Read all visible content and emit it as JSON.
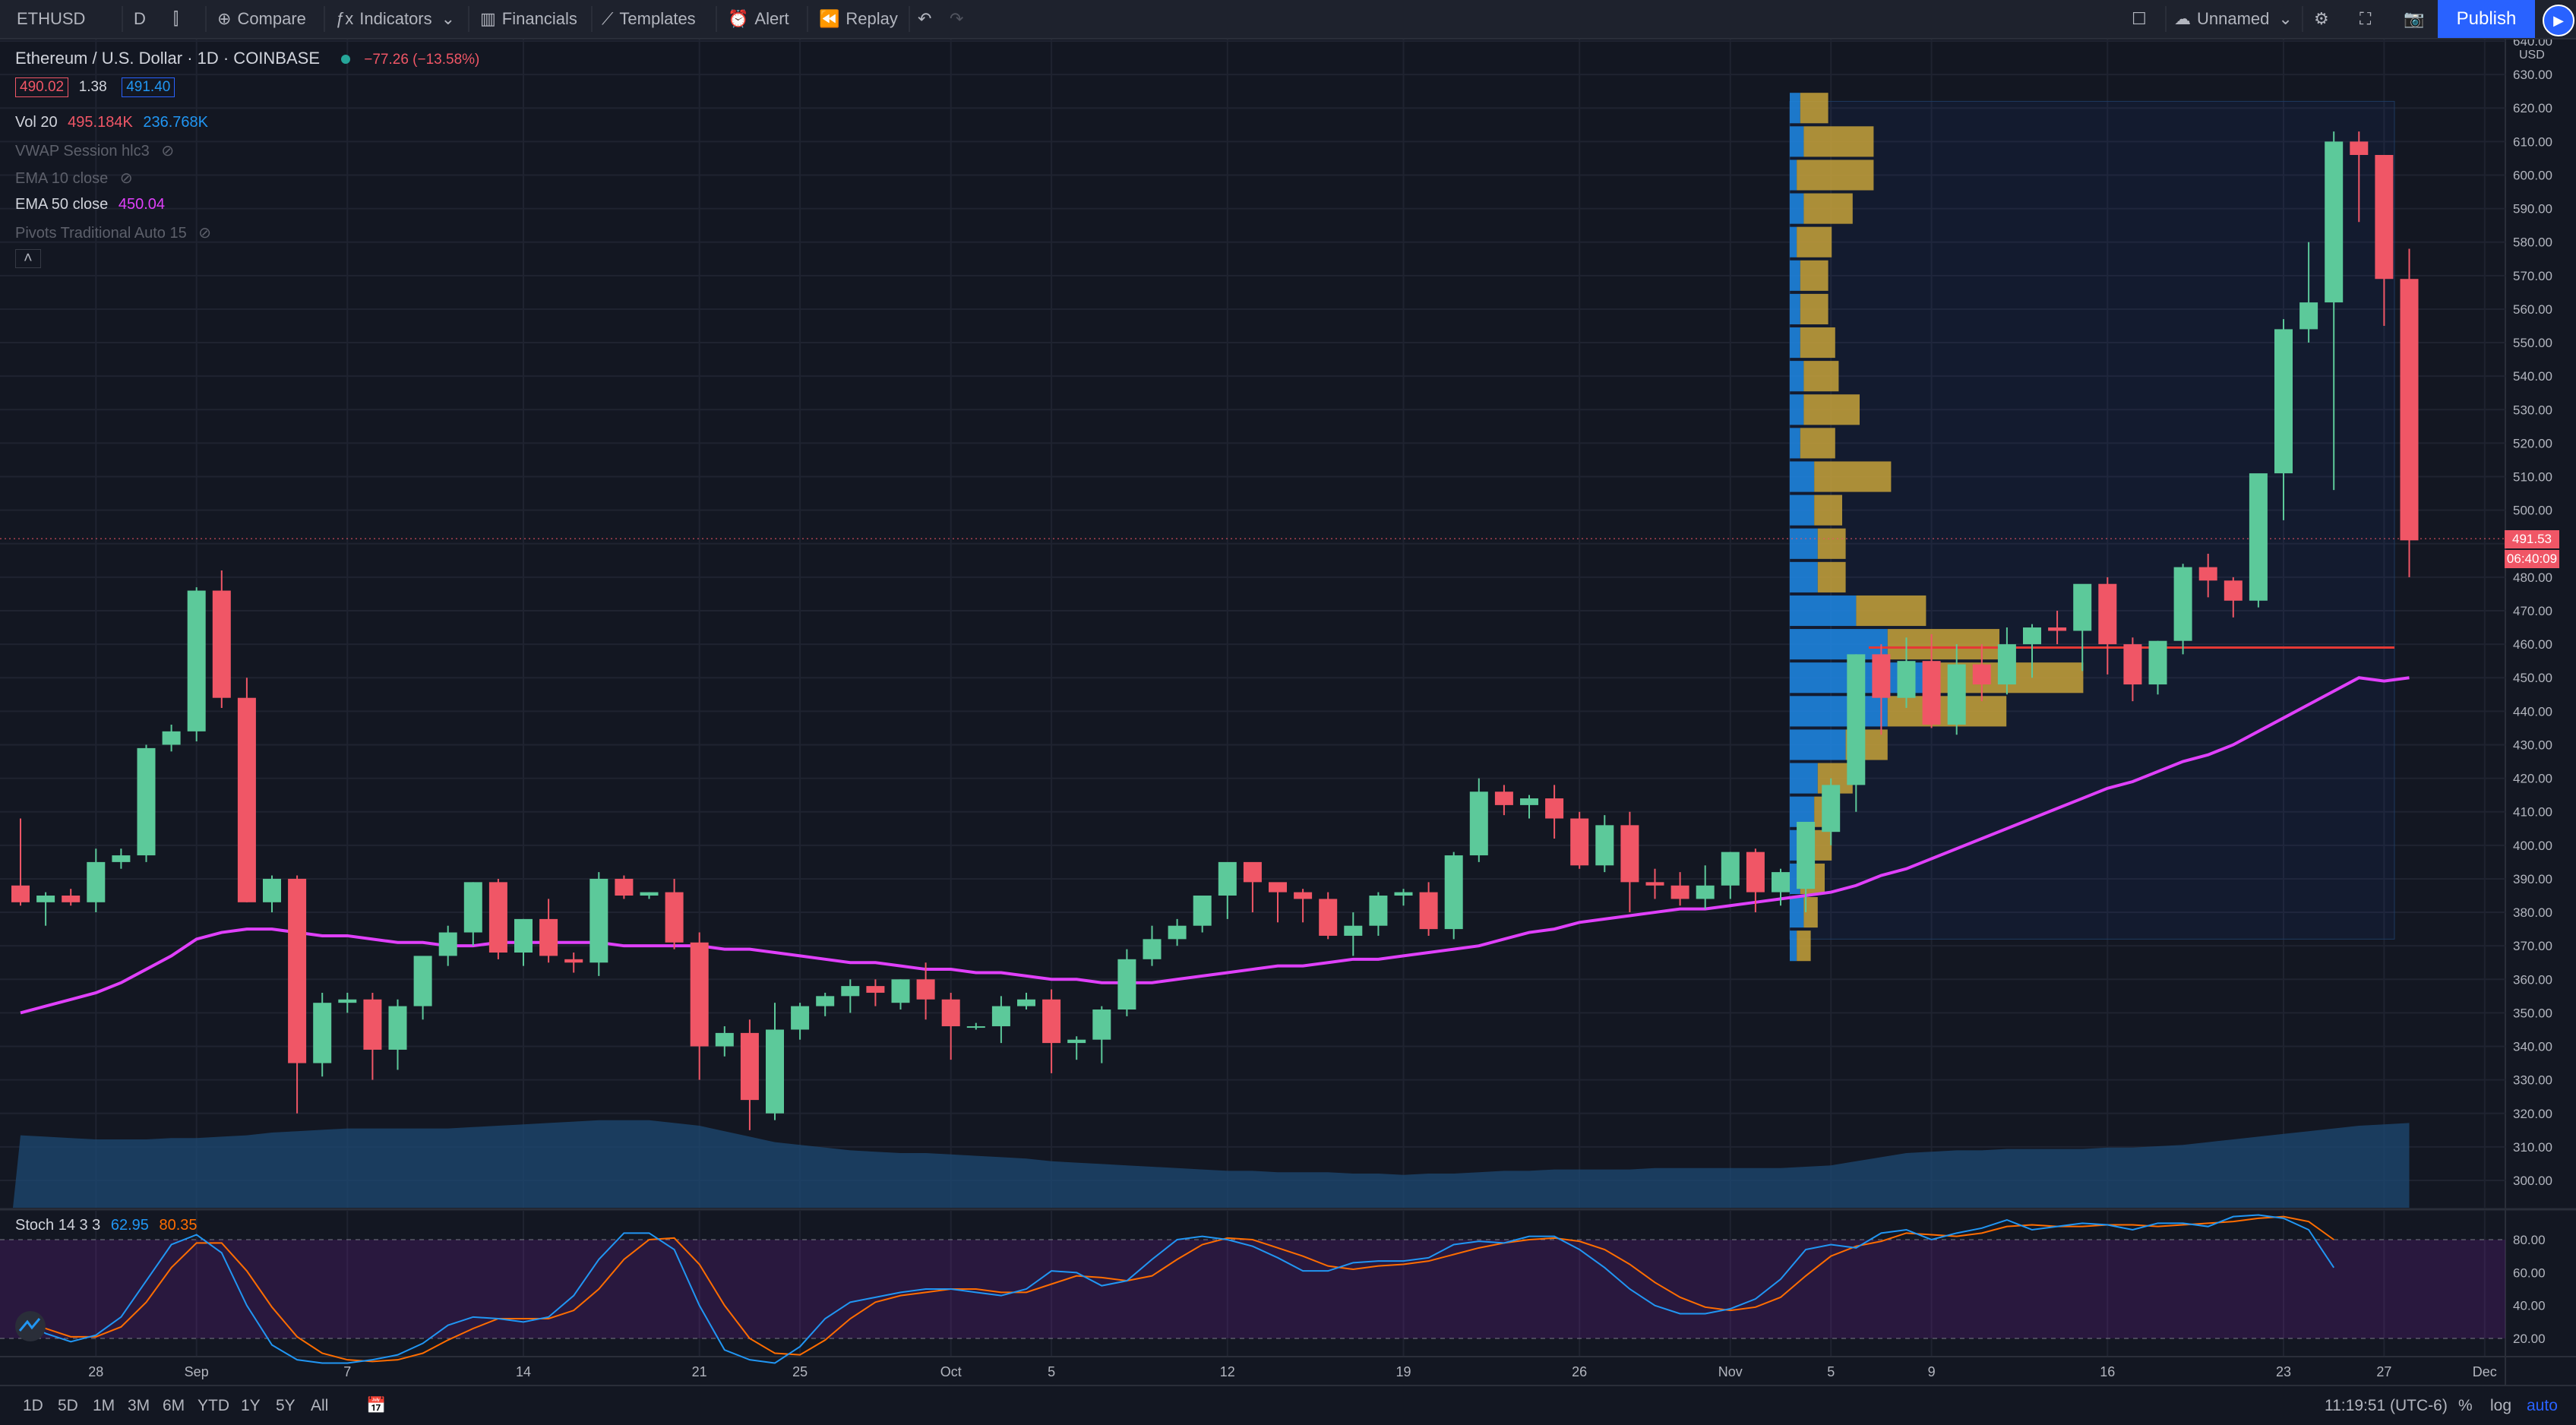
{
  "toolbar": {
    "symbol": "ETHUSD",
    "interval": "D",
    "compare": "Compare",
    "indicators": "Indicators",
    "financials": "Financials",
    "templates": "Templates",
    "alert": "Alert",
    "replay": "Replay",
    "layout_name": "Unnamed",
    "publish": "Publish"
  },
  "legend": {
    "title": "Ethereum / U.S. Dollar · 1D · COINBASE",
    "change": "−77.26 (−13.58%)",
    "bid": "490.02",
    "spread": "1.38",
    "ask": "491.40",
    "vol_label": "Vol 20",
    "vol_val1": "495.184K",
    "vol_val2": "236.768K",
    "vwap": "VWAP Session hlc3",
    "ema10": "EMA 10 close",
    "ema50": "EMA 50 close",
    "ema50_val": "450.04",
    "pivots": "Pivots Traditional Auto 15",
    "stoch_label": "Stoch 14 3 3",
    "stoch_k": "62.95",
    "stoch_d": "80.35"
  },
  "price_labels": {
    "last": "491.53",
    "countdown": "06:40:09",
    "currency": "USD"
  },
  "bottom": {
    "ranges": [
      "1D",
      "5D",
      "1M",
      "3M",
      "6M",
      "YTD",
      "1Y",
      "5Y",
      "All"
    ],
    "time": "11:19:51 (UTC-6)",
    "pct": "%",
    "log": "log",
    "auto": "auto"
  },
  "colors": {
    "up": "#26a69a",
    "up_body": "#5cc99a",
    "down": "#f05666",
    "ema": "#e040fb",
    "stoch_k": "#2196f3",
    "stoch_d": "#ff6d00",
    "volprofile_up": "#1e88e5",
    "volprofile_down": "#c7a23a"
  },
  "chart_data": {
    "type": "candlestick",
    "ylim": [
      295,
      640
    ],
    "price_ticks": [
      300,
      310,
      320,
      330,
      340,
      350,
      360,
      370,
      380,
      390,
      400,
      410,
      420,
      430,
      440,
      450,
      460,
      470,
      480,
      490,
      500,
      510,
      520,
      530,
      540,
      550,
      560,
      570,
      580,
      590,
      600,
      610,
      620,
      630,
      640
    ],
    "x_labels": [
      {
        "label": "28",
        "i": 3
      },
      {
        "label": "Sep",
        "i": 7
      },
      {
        "label": "7",
        "i": 13
      },
      {
        "label": "14",
        "i": 20
      },
      {
        "label": "21",
        "i": 27
      },
      {
        "label": "25",
        "i": 31
      },
      {
        "label": "Oct",
        "i": 37
      },
      {
        "label": "5",
        "i": 41
      },
      {
        "label": "12",
        "i": 48
      },
      {
        "label": "19",
        "i": 55
      },
      {
        "label": "26",
        "i": 62
      },
      {
        "label": "Nov",
        "i": 68
      },
      {
        "label": "5",
        "i": 72
      },
      {
        "label": "9",
        "i": 76
      },
      {
        "label": "16",
        "i": 83
      },
      {
        "label": "23",
        "i": 90
      },
      {
        "label": "27",
        "i": 94
      },
      {
        "label": "Dec",
        "i": 98
      }
    ],
    "candles": [
      [
        388,
        408,
        382,
        383
      ],
      [
        383,
        386,
        376,
        385
      ],
      [
        385,
        387,
        382,
        383
      ],
      [
        383,
        399,
        380,
        395
      ],
      [
        395,
        399,
        393,
        397
      ],
      [
        397,
        430,
        395,
        429
      ],
      [
        430,
        436,
        428,
        434
      ],
      [
        434,
        477,
        431,
        476
      ],
      [
        476,
        482,
        441,
        444
      ],
      [
        444,
        450,
        383,
        383
      ],
      [
        383,
        391,
        380,
        390
      ],
      [
        390,
        391,
        320,
        335
      ],
      [
        335,
        356,
        331,
        353
      ],
      [
        353,
        356,
        350,
        354
      ],
      [
        354,
        356,
        330,
        339
      ],
      [
        339,
        354,
        333,
        352
      ],
      [
        352,
        365,
        348,
        367
      ],
      [
        367,
        376,
        364,
        374
      ],
      [
        374,
        389,
        370,
        389
      ],
      [
        389,
        390,
        366,
        368
      ],
      [
        368,
        378,
        364,
        378
      ],
      [
        378,
        384,
        365,
        367
      ],
      [
        366,
        368,
        362,
        365
      ],
      [
        365,
        392,
        361,
        390
      ],
      [
        390,
        391,
        384,
        385
      ],
      [
        385,
        386,
        384,
        386
      ],
      [
        386,
        390,
        369,
        371
      ],
      [
        371,
        374,
        330,
        340
      ],
      [
        340,
        346,
        337,
        344
      ],
      [
        344,
        348,
        315,
        324
      ],
      [
        320,
        353,
        318,
        345
      ],
      [
        345,
        353,
        342,
        352
      ],
      [
        352,
        356,
        349,
        355
      ],
      [
        355,
        360,
        350,
        358
      ],
      [
        358,
        360,
        352,
        356
      ],
      [
        353,
        360,
        351,
        360
      ],
      [
        360,
        365,
        348,
        354
      ],
      [
        354,
        356,
        336,
        346
      ],
      [
        346,
        347,
        345,
        346
      ],
      [
        346,
        355,
        341,
        352
      ],
      [
        352,
        356,
        351,
        354
      ],
      [
        354,
        357,
        332,
        341
      ],
      [
        341,
        343,
        336,
        342
      ],
      [
        342,
        352,
        335,
        351
      ],
      [
        351,
        369,
        349,
        366
      ],
      [
        366,
        376,
        364,
        372
      ],
      [
        372,
        378,
        370,
        376
      ],
      [
        376,
        384,
        374,
        385
      ],
      [
        385,
        394,
        378,
        395
      ],
      [
        395,
        392,
        380,
        389
      ],
      [
        389,
        388,
        377,
        386
      ],
      [
        386,
        387,
        377,
        384
      ],
      [
        384,
        386,
        372,
        373
      ],
      [
        373,
        380,
        367,
        376
      ],
      [
        376,
        386,
        373,
        385
      ],
      [
        385,
        387,
        382,
        386
      ],
      [
        386,
        389,
        373,
        375
      ],
      [
        375,
        398,
        372,
        397
      ],
      [
        397,
        420,
        395,
        416
      ],
      [
        416,
        418,
        409,
        412
      ],
      [
        412,
        415,
        408,
        414
      ],
      [
        414,
        418,
        402,
        408
      ],
      [
        408,
        410,
        393,
        394
      ],
      [
        394,
        409,
        392,
        406
      ],
      [
        406,
        410,
        380,
        389
      ],
      [
        389,
        393,
        384,
        388
      ],
      [
        388,
        392,
        382,
        384
      ],
      [
        384,
        394,
        381,
        388
      ],
      [
        388,
        398,
        384,
        398
      ],
      [
        398,
        399,
        380,
        386
      ],
      [
        386,
        393,
        382,
        392
      ],
      [
        387,
        407,
        380,
        407
      ],
      [
        404,
        420,
        400,
        418
      ],
      [
        418,
        457,
        410,
        457
      ],
      [
        457,
        460,
        433,
        444
      ],
      [
        444,
        462,
        441,
        455
      ],
      [
        455,
        463,
        435,
        436
      ],
      [
        436,
        460,
        433,
        454
      ],
      [
        454,
        460,
        443,
        448
      ],
      [
        448,
        465,
        445,
        460
      ],
      [
        460,
        466,
        450,
        465
      ],
      [
        465,
        470,
        460,
        464
      ],
      [
        464,
        476,
        452,
        478
      ],
      [
        478,
        480,
        451,
        460
      ],
      [
        460,
        462,
        443,
        448
      ],
      [
        448,
        461,
        445,
        461
      ],
      [
        461,
        484,
        457,
        483
      ],
      [
        483,
        487,
        474,
        479
      ],
      [
        479,
        480,
        468,
        473
      ],
      [
        473,
        510,
        471,
        511
      ],
      [
        511,
        557,
        497,
        554
      ],
      [
        554,
        580,
        550,
        562
      ],
      [
        562,
        613,
        506,
        610
      ],
      [
        610,
        613,
        586,
        606
      ],
      [
        606,
        605,
        555,
        569
      ],
      [
        569,
        578,
        480,
        491
      ]
    ],
    "ema50": [
      350,
      352,
      354,
      356,
      359,
      363,
      367,
      372,
      374,
      375,
      375,
      374,
      373,
      373,
      372,
      371,
      371,
      370,
      370,
      371,
      371,
      371,
      371,
      371,
      370,
      370,
      370,
      370,
      369,
      369,
      368,
      367,
      366,
      365,
      365,
      364,
      363,
      363,
      362,
      362,
      361,
      360,
      360,
      359,
      359,
      359,
      360,
      361,
      362,
      363,
      364,
      364,
      365,
      366,
      366,
      367,
      368,
      369,
      370,
      372,
      374,
      375,
      377,
      378,
      379,
      380,
      381,
      381,
      382,
      383,
      384,
      385,
      386,
      388,
      391,
      393,
      396,
      399,
      402,
      405,
      408,
      411,
      414,
      417,
      419,
      422,
      425,
      427,
      430,
      434,
      438,
      442,
      446,
      450,
      449,
      450
    ],
    "volume_levels": [
      0.53,
      0.52,
      0.51,
      0.5,
      0.5,
      0.5,
      0.51,
      0.51,
      0.52,
      0.53,
      0.55,
      0.56,
      0.57,
      0.58,
      0.58,
      0.58,
      0.58,
      0.58,
      0.59,
      0.6,
      0.61,
      0.62,
      0.63,
      0.64,
      0.64,
      0.64,
      0.62,
      0.6,
      0.56,
      0.52,
      0.48,
      0.46,
      0.44,
      0.42,
      0.41,
      0.4,
      0.4,
      0.39,
      0.38,
      0.37,
      0.36,
      0.34,
      0.33,
      0.32,
      0.31,
      0.3,
      0.29,
      0.28,
      0.27,
      0.27,
      0.26,
      0.26,
      0.26,
      0.25,
      0.25,
      0.24,
      0.25,
      0.25,
      0.26,
      0.27,
      0.27,
      0.28,
      0.28,
      0.28,
      0.28,
      0.29,
      0.29,
      0.29,
      0.29,
      0.29,
      0.29,
      0.3,
      0.31,
      0.34,
      0.37,
      0.4,
      0.41,
      0.42,
      0.42,
      0.43,
      0.43,
      0.43,
      0.43,
      0.44,
      0.44,
      0.45,
      0.46,
      0.48,
      0.5,
      0.52,
      0.54,
      0.56,
      0.58,
      0.6,
      0.61,
      0.62
    ],
    "volume_profile": [
      {
        "price": 620,
        "up": 3,
        "down": 8
      },
      {
        "price": 610,
        "up": 4,
        "down": 20
      },
      {
        "price": 600,
        "up": 2,
        "down": 22
      },
      {
        "price": 590,
        "up": 4,
        "down": 14
      },
      {
        "price": 580,
        "up": 2,
        "down": 10
      },
      {
        "price": 570,
        "up": 3,
        "down": 8
      },
      {
        "price": 560,
        "up": 3,
        "down": 8
      },
      {
        "price": 550,
        "up": 3,
        "down": 10
      },
      {
        "price": 540,
        "up": 4,
        "down": 10
      },
      {
        "price": 530,
        "up": 4,
        "down": 16
      },
      {
        "price": 520,
        "up": 3,
        "down": 10
      },
      {
        "price": 510,
        "up": 7,
        "down": 22
      },
      {
        "price": 500,
        "up": 7,
        "down": 8
      },
      {
        "price": 490,
        "up": 8,
        "down": 8
      },
      {
        "price": 480,
        "up": 8,
        "down": 8
      },
      {
        "price": 470,
        "up": 19,
        "down": 20
      },
      {
        "price": 460,
        "up": 28,
        "down": 32
      },
      {
        "price": 450,
        "up": 40,
        "down": 44
      },
      {
        "price": 440,
        "up": 28,
        "down": 34
      },
      {
        "price": 430,
        "up": 16,
        "down": 12
      },
      {
        "price": 420,
        "up": 8,
        "down": 10
      },
      {
        "price": 410,
        "up": 7,
        "down": 6
      },
      {
        "price": 400,
        "up": 6,
        "down": 6
      },
      {
        "price": 390,
        "up": 3,
        "down": 7
      },
      {
        "price": 380,
        "up": 4,
        "down": 4
      },
      {
        "price": 370,
        "up": 2,
        "down": 4
      }
    ],
    "volume_profile_range": [
      372,
      622
    ],
    "poc_price": 459,
    "stoch": {
      "ticks": [
        20,
        40,
        60,
        80
      ],
      "k": [
        32,
        23,
        18,
        22,
        33,
        55,
        77,
        83,
        72,
        40,
        16,
        7,
        5,
        5,
        7,
        10,
        17,
        28,
        33,
        32,
        30,
        33,
        46,
        68,
        84,
        84,
        74,
        40,
        13,
        7,
        5,
        15,
        32,
        42,
        45,
        48,
        50,
        50,
        48,
        46,
        50,
        61,
        60,
        52,
        55,
        68,
        80,
        82,
        80,
        76,
        69,
        61,
        61,
        66,
        67,
        67,
        69,
        77,
        79,
        78,
        82,
        82,
        74,
        63,
        50,
        40,
        35,
        35,
        38,
        44,
        56,
        74,
        77,
        75,
        84,
        86,
        80,
        84,
        87,
        92,
        86,
        88,
        90,
        89,
        86,
        90,
        90,
        88,
        94,
        95,
        93,
        86,
        63
      ],
      "d": [
        33,
        26,
        21,
        21,
        27,
        42,
        63,
        78,
        78,
        61,
        39,
        21,
        11,
        7,
        6,
        7,
        11,
        19,
        26,
        32,
        32,
        32,
        37,
        50,
        68,
        80,
        81,
        65,
        40,
        20,
        11,
        10,
        19,
        32,
        42,
        46,
        48,
        50,
        50,
        48,
        48,
        53,
        58,
        57,
        55,
        58,
        68,
        77,
        81,
        80,
        75,
        70,
        64,
        62,
        64,
        65,
        67,
        71,
        75,
        78,
        80,
        81,
        79,
        74,
        65,
        54,
        45,
        39,
        37,
        39,
        45,
        58,
        70,
        76,
        79,
        84,
        83,
        82,
        84,
        88,
        89,
        88,
        88,
        89,
        89,
        88,
        89,
        90,
        91,
        93,
        94,
        91,
        80
      ]
    },
    "annotations": [
      "VPVR"
    ]
  }
}
